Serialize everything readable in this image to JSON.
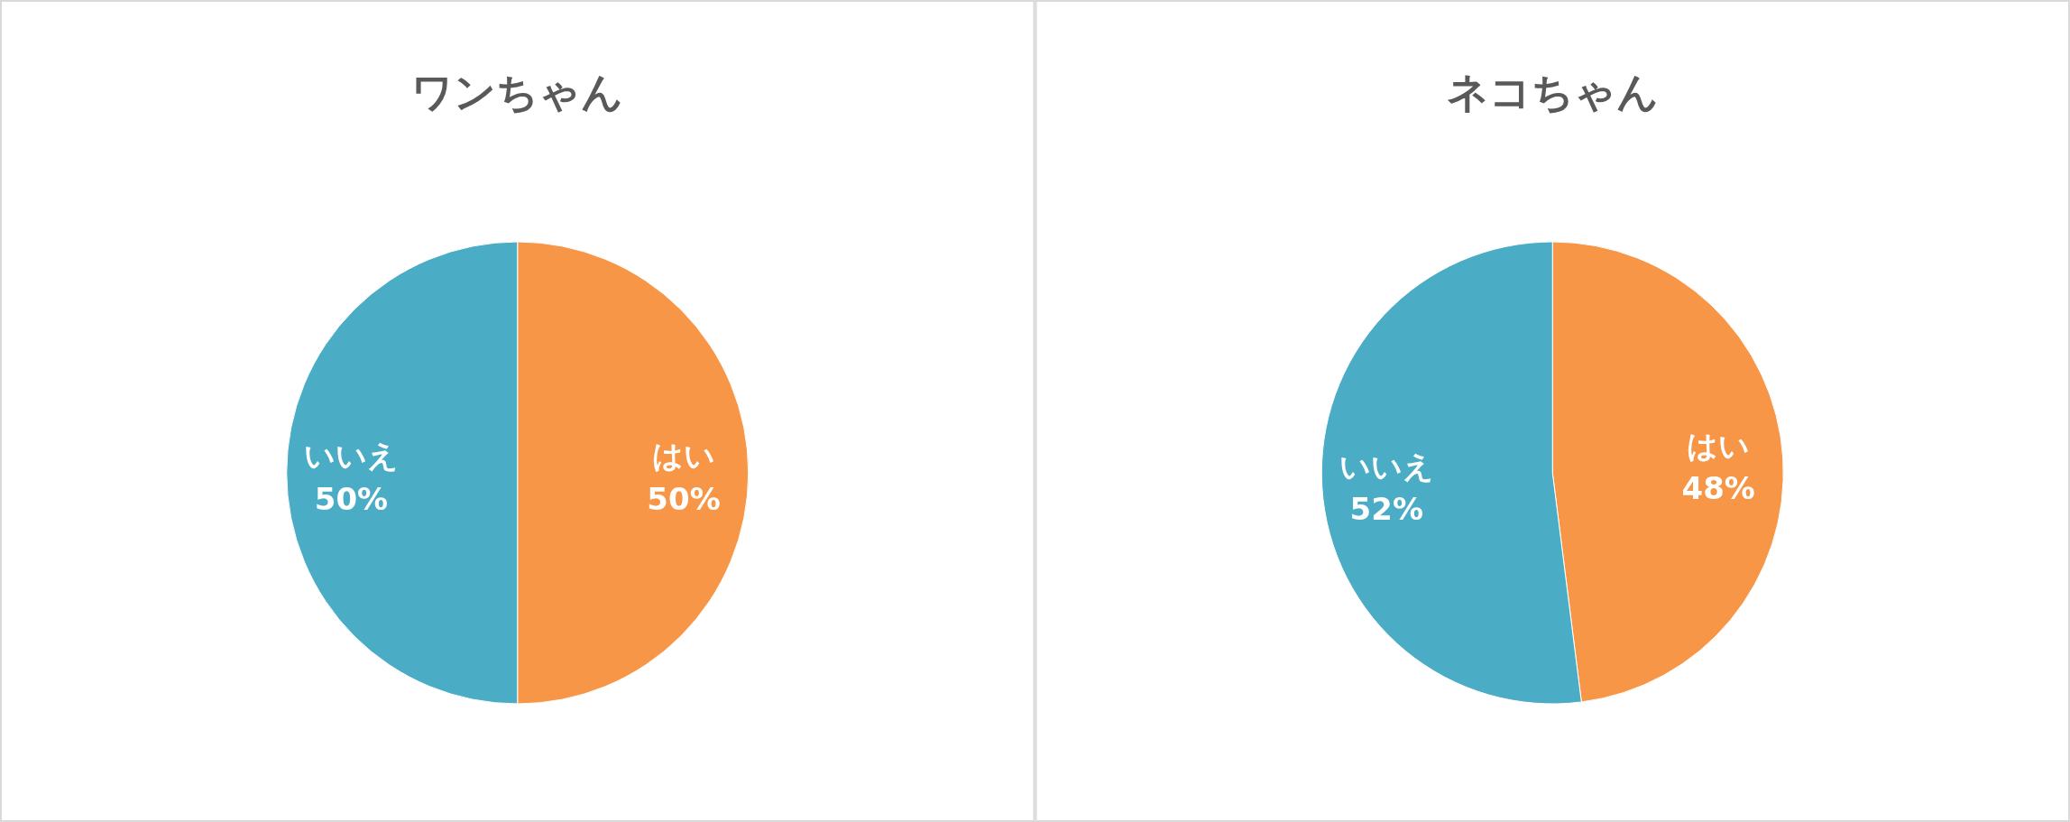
{
  "chart_data": [
    {
      "type": "pie",
      "title": "ワンちゃん",
      "categories": [
        "はい",
        "いいえ"
      ],
      "values": [
        50,
        50
      ],
      "value_labels": [
        "50%",
        "50%"
      ],
      "colors": [
        "#f79646",
        "#4bacc6"
      ],
      "legend": false
    },
    {
      "type": "pie",
      "title": "ネコちゃん",
      "categories": [
        "はい",
        "いいえ"
      ],
      "values": [
        48,
        52
      ],
      "value_labels": [
        "48%",
        "52%"
      ],
      "colors": [
        "#f79646",
        "#4bacc6"
      ],
      "legend": false
    }
  ]
}
